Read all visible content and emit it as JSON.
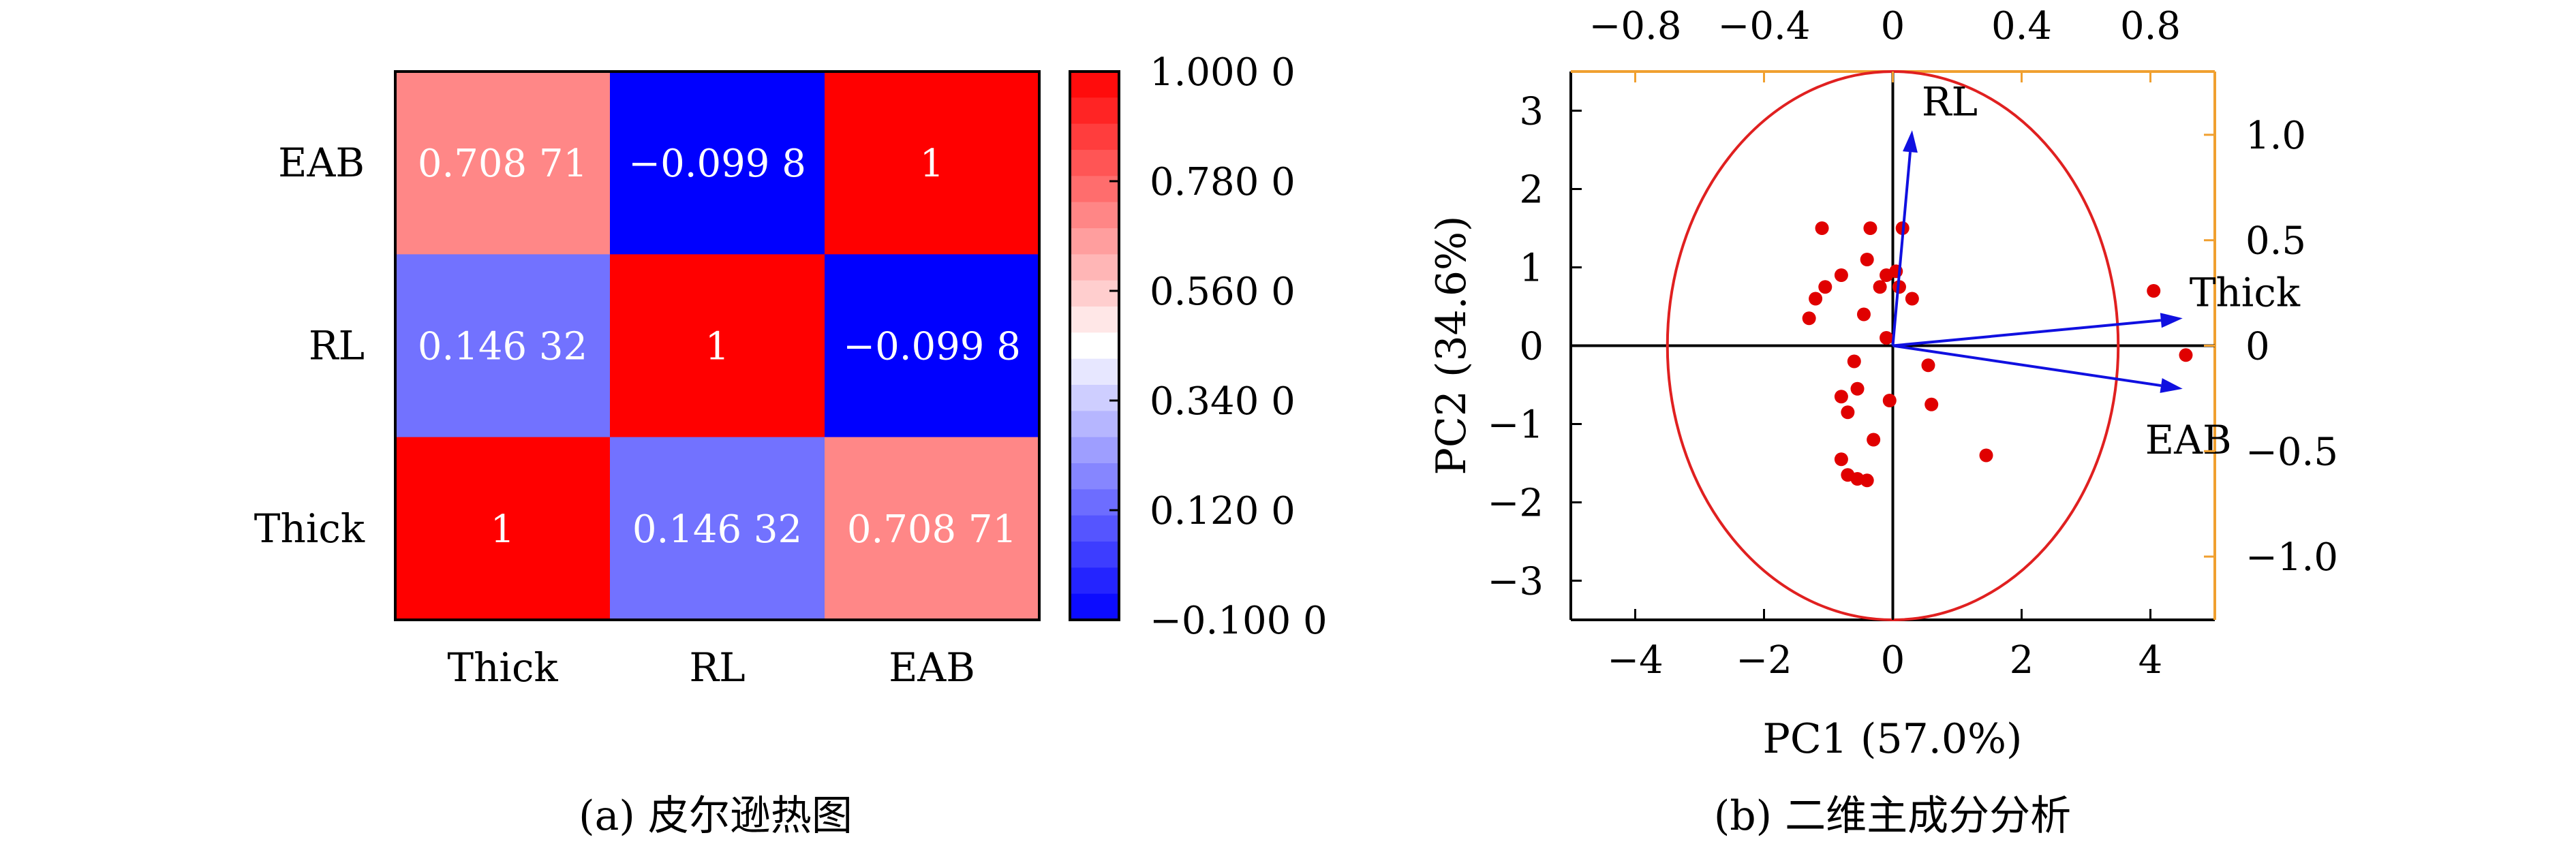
{
  "chart_data": [
    {
      "type": "heatmap",
      "caption": "(a) 皮尔逊热图",
      "x_categories": [
        "Thick",
        "RL",
        "EAB"
      ],
      "y_categories": [
        "EAB",
        "RL",
        "Thick"
      ],
      "values": [
        [
          0.70871,
          -0.0998,
          1
        ],
        [
          0.14632,
          1,
          -0.0998
        ],
        [
          1,
          0.14632,
          0.70871
        ]
      ],
      "cell_labels": [
        [
          "0.708 71",
          "−0.099 8",
          "1"
        ],
        [
          "0.146 32",
          "1",
          "−0.099 8"
        ],
        [
          "1",
          "0.146 32",
          "0.708 71"
        ]
      ],
      "colorbar": {
        "min": -0.1,
        "max": 1.0,
        "ticks": [
          1.0,
          0.78,
          0.56,
          0.34,
          0.12,
          -0.1
        ],
        "tick_labels": [
          "1.000 0",
          "0.780 0",
          "0.560 0",
          "0.340 0",
          "0.120 0",
          "−0.100 0"
        ],
        "colors": {
          "low": "#0000ff",
          "mid": "#ffffff",
          "high": "#ff0000"
        },
        "steps": 21
      }
    },
    {
      "type": "scatter",
      "subtype": "biplot",
      "caption": "(b) 二维主成分分析",
      "xlabel": "PC1 (57.0%)",
      "ylabel": "PC2 (34.6%)",
      "xlim": [
        -5,
        5
      ],
      "ylim": [
        -3.5,
        3.5
      ],
      "xticks": [
        -4,
        -2,
        0,
        2,
        4
      ],
      "xtick_labels": [
        "−4",
        "−2",
        "0",
        "2",
        "4"
      ],
      "yticks": [
        3,
        2,
        1,
        0,
        -1,
        -2,
        -3
      ],
      "ytick_labels": [
        "3",
        "2",
        "1",
        "0",
        "−1",
        "−2",
        "−3"
      ],
      "top_axis": {
        "lim": [
          -1.0,
          1.0
        ],
        "ticks": [
          -0.8,
          -0.4,
          0,
          0.4,
          0.8
        ],
        "tick_labels": [
          "−0.8",
          "−0.4",
          "0",
          "0.4",
          "0.8"
        ],
        "color": "#f0a030"
      },
      "right_axis": {
        "lim": [
          -1.3,
          1.3
        ],
        "ticks": [
          1.0,
          0.5,
          0,
          -0.5,
          -1.0
        ],
        "tick_labels": [
          "1.0",
          "0.5",
          "0",
          "−0.5",
          "−1.0"
        ],
        "color": "#f0a030"
      },
      "circle": {
        "center": [
          0,
          0
        ],
        "radius": 3.5,
        "color": "#e02020"
      },
      "points": [
        [
          -1.1,
          1.5
        ],
        [
          -0.35,
          1.5
        ],
        [
          0.15,
          1.5
        ],
        [
          -0.4,
          1.1
        ],
        [
          -0.8,
          0.9
        ],
        [
          -0.1,
          0.9
        ],
        [
          0.05,
          0.95
        ],
        [
          -1.05,
          0.75
        ],
        [
          -0.2,
          0.75
        ],
        [
          0.1,
          0.75
        ],
        [
          -1.2,
          0.6
        ],
        [
          0.3,
          0.6
        ],
        [
          -1.3,
          0.35
        ],
        [
          -0.45,
          0.4
        ],
        [
          -0.1,
          0.1
        ],
        [
          -0.6,
          -0.2
        ],
        [
          0.55,
          -0.25
        ],
        [
          -0.55,
          -0.55
        ],
        [
          -0.8,
          -0.65
        ],
        [
          -0.05,
          -0.7
        ],
        [
          0.6,
          -0.75
        ],
        [
          -0.7,
          -0.85
        ],
        [
          -0.3,
          -1.2
        ],
        [
          -0.8,
          -1.45
        ],
        [
          1.45,
          -1.4
        ],
        [
          -0.7,
          -1.65
        ],
        [
          -0.55,
          -1.7
        ],
        [
          -0.4,
          -1.72
        ],
        [
          4.05,
          0.7
        ],
        [
          4.55,
          -0.12
        ]
      ],
      "point_color": "#e00000",
      "vectors": [
        {
          "label": "RL",
          "x": 0.3,
          "y": 2.75
        },
        {
          "label": "Thick",
          "x": 4.5,
          "y": 0.35
        },
        {
          "label": "EAB",
          "x": 4.5,
          "y": -0.55
        }
      ],
      "vector_color": "#1010e0"
    }
  ]
}
